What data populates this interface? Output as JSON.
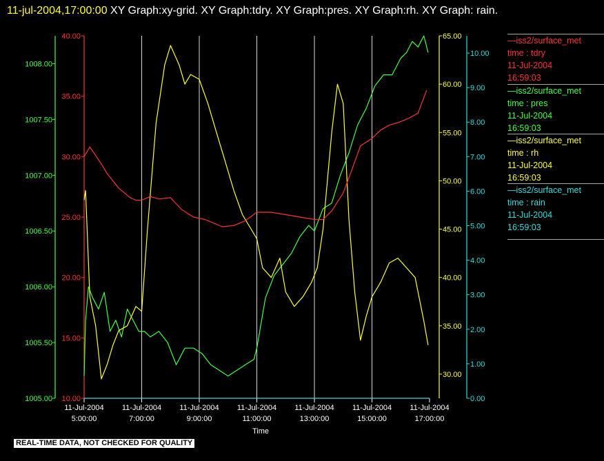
{
  "title": {
    "timestamp": "11-jul-2004,17:00:00",
    "text": "  XY Graph:xy-grid.  XY Graph:tdry.  XY Graph:pres.  XY Graph:rh.  XY Graph: rain."
  },
  "note": "REAL-TIME DATA, NOT CHECKED FOR QUALITY",
  "chart_data": {
    "type": "line",
    "xlabel": "Time",
    "x_ticks": [
      {
        "date": "11-Jul-2004",
        "time": "5:00:00",
        "hour": 5
      },
      {
        "date": "11-Jul-2004",
        "time": "7:00:00",
        "hour": 7
      },
      {
        "date": "11-Jul-2004",
        "time": "9:00:00",
        "hour": 9
      },
      {
        "date": "11-Jul-2004",
        "time": "11:00:00",
        "hour": 11
      },
      {
        "date": "11-Jul-2004",
        "time": "13:00:00",
        "hour": 13
      },
      {
        "date": "11-Jul-2004",
        "time": "15:00:00",
        "hour": 15
      },
      {
        "date": "11-Jul-2004",
        "time": "17:00:00",
        "hour": 17
      }
    ],
    "xlim": [
      5,
      17
    ],
    "vertical_grid": [
      7,
      9,
      11,
      13,
      15
    ],
    "series": [
      {
        "key": "tdry",
        "label1": "iss2/surface_met",
        "label2": "time : tdry",
        "date": "11-Jul-2004",
        "time": "16:59:03",
        "color": "#ff3333",
        "ylim": [
          10,
          40
        ],
        "ticks": [
          "10.00",
          "15.00",
          "20.00",
          "25.00",
          "30.00",
          "35.00",
          "40.00"
        ],
        "x": [
          5.0,
          5.2,
          5.4,
          5.6,
          5.8,
          6.0,
          6.2,
          6.4,
          6.6,
          6.8,
          7.0,
          7.3,
          7.6,
          8.0,
          8.4,
          8.8,
          9.2,
          9.5,
          9.8,
          10.2,
          10.6,
          11.0,
          11.5,
          12.0,
          12.5,
          13.0,
          13.3,
          13.6,
          14.0,
          14.3,
          14.6,
          15.0,
          15.3,
          15.6,
          16.0,
          16.3,
          16.6,
          16.9
        ],
        "y": [
          30.0,
          30.8,
          30.1,
          29.4,
          28.6,
          28.0,
          27.4,
          27.0,
          26.6,
          26.4,
          26.4,
          26.7,
          26.5,
          26.6,
          25.6,
          25.0,
          24.8,
          24.5,
          24.2,
          24.3,
          24.7,
          25.4,
          25.4,
          25.2,
          25.0,
          24.8,
          24.8,
          25.5,
          27.0,
          28.9,
          30.9,
          31.5,
          32.2,
          32.6,
          32.9,
          33.2,
          33.6,
          35.5
        ]
      },
      {
        "key": "pres",
        "label1": "iss2/surface_met",
        "label2": "time : pres",
        "date": "11-Jul-2004",
        "time": "16:59:03",
        "color": "#44ff44",
        "ylim": [
          1005.0,
          1008.25
        ],
        "ticks": [
          "1005.00",
          "1005.50",
          "1006.00",
          "1006.50",
          "1007.00",
          "1007.50",
          "1008.00"
        ],
        "x": [
          5.0,
          5.05,
          5.15,
          5.3,
          5.5,
          5.7,
          5.9,
          6.1,
          6.3,
          6.5,
          6.7,
          6.9,
          7.1,
          7.3,
          7.6,
          7.9,
          8.2,
          8.5,
          8.8,
          9.1,
          9.4,
          9.7,
          10.0,
          10.3,
          10.6,
          10.9,
          11.0,
          11.3,
          11.6,
          11.9,
          12.2,
          12.5,
          12.8,
          13.0,
          13.3,
          13.6,
          13.9,
          14.2,
          14.5,
          14.8,
          15.1,
          15.4,
          15.7,
          16.0,
          16.2,
          16.4,
          16.6,
          16.8,
          16.95
        ],
        "y": [
          1005.2,
          1005.7,
          1006.0,
          1005.9,
          1005.8,
          1005.95,
          1005.6,
          1005.7,
          1005.55,
          1005.8,
          1005.7,
          1005.6,
          1005.6,
          1005.55,
          1005.6,
          1005.5,
          1005.3,
          1005.45,
          1005.45,
          1005.4,
          1005.3,
          1005.25,
          1005.2,
          1005.25,
          1005.3,
          1005.35,
          1005.45,
          1005.9,
          1006.1,
          1006.2,
          1006.3,
          1006.45,
          1006.55,
          1006.5,
          1006.7,
          1006.75,
          1007.0,
          1007.2,
          1007.45,
          1007.6,
          1007.8,
          1007.9,
          1007.9,
          1008.05,
          1008.1,
          1008.2,
          1008.15,
          1008.25,
          1008.1
        ]
      },
      {
        "key": "rh",
        "label1": "iss2/surface_met",
        "label2": "time : rh",
        "date": "11-Jul-2004",
        "time": "16:59:03",
        "color": "#ffff33",
        "ylim": [
          27.5,
          65.0
        ],
        "ticks": [
          "30.00",
          "35.00",
          "40.00",
          "45.00",
          "50.00",
          "55.00",
          "60.00",
          "65.00"
        ],
        "x": [
          5.0,
          5.05,
          5.2,
          5.4,
          5.6,
          5.8,
          6.0,
          6.2,
          6.5,
          6.8,
          7.0,
          7.2,
          7.5,
          7.8,
          8.0,
          8.3,
          8.5,
          8.7,
          9.0,
          9.3,
          9.6,
          9.9,
          10.2,
          10.5,
          10.8,
          11.0,
          11.2,
          11.5,
          11.8,
          12.0,
          12.3,
          12.6,
          12.9,
          13.1,
          13.3,
          13.6,
          13.8,
          14.0,
          14.2,
          14.4,
          14.6,
          14.8,
          15.0,
          15.3,
          15.6,
          15.9,
          16.2,
          16.5,
          16.8,
          16.95
        ],
        "y": [
          48.0,
          49.0,
          38.0,
          35.0,
          29.5,
          31.0,
          33.0,
          34.5,
          35.0,
          37.0,
          36.5,
          45.0,
          56.0,
          62.0,
          64.0,
          62.0,
          60.0,
          61.0,
          60.5,
          58.0,
          55.0,
          52.0,
          49.0,
          46.5,
          45.0,
          44.0,
          41.0,
          40.0,
          42.0,
          38.5,
          37.0,
          38.0,
          39.5,
          41.0,
          45.0,
          55.0,
          60.0,
          58.0,
          46.0,
          38.5,
          33.5,
          36.0,
          38.0,
          39.5,
          41.5,
          42.0,
          41.0,
          40.0,
          35.5,
          33.0
        ]
      },
      {
        "key": "rain",
        "label1": "iss2/surface_met",
        "label2": "time : rain",
        "date": "11-Jul-2004",
        "time": "16:59:03",
        "color": "#33dddd",
        "ylim": [
          0,
          10.5
        ],
        "ticks": [
          "0.00",
          "1.00",
          "2.00",
          "3.00",
          "4.00",
          "5.00",
          "6.00",
          "7.00",
          "8.00",
          "9.00",
          "10.00"
        ],
        "x": [
          5.0,
          17.0
        ],
        "y": [
          0.0,
          0.0
        ]
      }
    ]
  }
}
